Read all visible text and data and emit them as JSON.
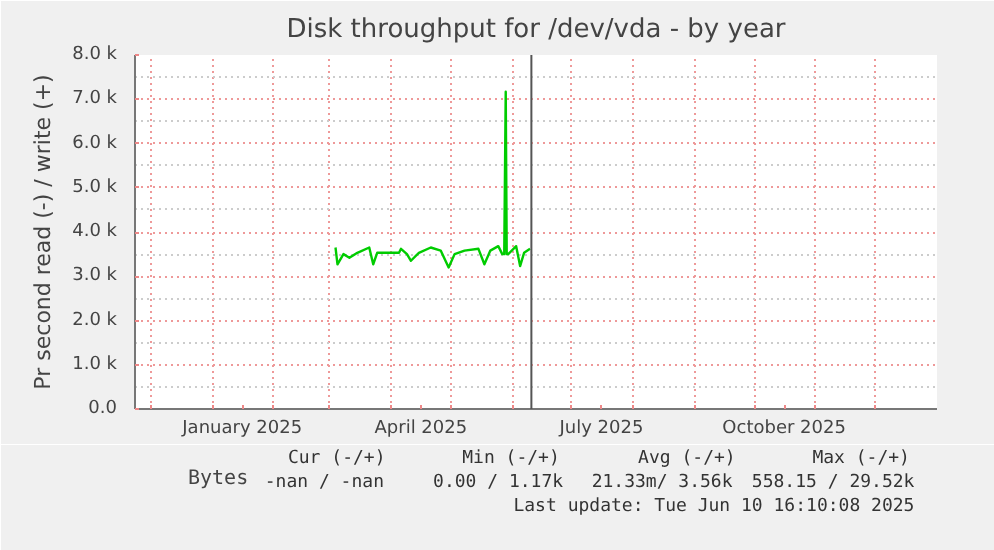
{
  "chart_data": {
    "type": "line",
    "title": "Disk throughput for /dev/vda - by year",
    "ylabel": "Pr second read (-) / write (+)",
    "x": [
      "2025-03-04",
      "2025-03-05",
      "2025-03-08",
      "2025-03-11",
      "2025-03-15",
      "2025-03-21",
      "2025-03-23",
      "2025-03-25",
      "2025-04-05",
      "2025-04-06",
      "2025-04-09",
      "2025-04-11",
      "2025-04-15",
      "2025-04-21",
      "2025-04-26",
      "2025-04-30",
      "2025-05-03",
      "2025-05-08",
      "2025-05-15",
      "2025-05-18",
      "2025-05-21",
      "2025-05-25",
      "2025-05-27",
      "2025-05-28",
      "2025-05-28T18:00",
      "2025-05-29T06:00",
      "2025-05-30",
      "2025-06-03",
      "2025-06-05",
      "2025-06-07",
      "2025-06-10"
    ],
    "series": [
      {
        "name": "Bytes",
        "color": "#00cc00",
        "values": [
          3650,
          3270,
          3500,
          3420,
          3530,
          3650,
          3270,
          3530,
          3530,
          3620,
          3500,
          3350,
          3530,
          3650,
          3580,
          3200,
          3500,
          3580,
          3620,
          3270,
          3580,
          3680,
          3500,
          3500,
          7170,
          3500,
          3500,
          3680,
          3230,
          3530,
          3620
        ]
      }
    ],
    "xlim": [
      "2024-11-23",
      "2026-01-01"
    ],
    "xticks": [
      {
        "value": "2024-12-01",
        "label": null
      },
      {
        "value": "2025-01-01",
        "label": null
      },
      {
        "value": "2025-01-16",
        "label": "January 2025"
      },
      {
        "value": "2025-02-01",
        "label": null
      },
      {
        "value": "2025-03-01",
        "label": null
      },
      {
        "value": "2025-04-01",
        "label": null
      },
      {
        "value": "2025-04-16",
        "label": "April 2025"
      },
      {
        "value": "2025-05-01",
        "label": null
      },
      {
        "value": "2025-06-01",
        "label": null
      },
      {
        "value": "2025-07-01",
        "label": null
      },
      {
        "value": "2025-07-16",
        "label": "July 2025"
      },
      {
        "value": "2025-08-01",
        "label": null
      },
      {
        "value": "2025-09-01",
        "label": null
      },
      {
        "value": "2025-10-01",
        "label": null
      },
      {
        "value": "2025-10-16",
        "label": "October 2025"
      },
      {
        "value": "2025-11-01",
        "label": null
      },
      {
        "value": "2025-12-01",
        "label": null
      }
    ],
    "ylim": [
      0,
      8000
    ],
    "yticks": [
      {
        "value": 0,
        "label": "0.0"
      },
      {
        "value": 1000,
        "label": "1.0 k"
      },
      {
        "value": 2000,
        "label": "2.0 k"
      },
      {
        "value": 3000,
        "label": "3.0 k"
      },
      {
        "value": 4000,
        "label": "4.0 k"
      },
      {
        "value": 5000,
        "label": "5.0 k"
      },
      {
        "value": 6000,
        "label": "6.0 k"
      },
      {
        "value": 7000,
        "label": "7.0 k"
      },
      {
        "value": 8000,
        "label": "8.0 k"
      }
    ],
    "ref_lines": [
      {
        "axis": "x",
        "value": "2025-06-10T16:10",
        "color": "#555555"
      }
    ],
    "grid": true,
    "legend": "bottom left",
    "annotations": [
      "Cur (-/+)",
      "Min (-/+)",
      "Avg (-/+)",
      "Max (-/+)",
      "-nan /  -nan",
      "0.00 /  1.17k",
      "21.33m/  3.56k",
      "558.15 / 29.52k",
      "Last update: Tue Jun 10 16:10:08 2025"
    ]
  }
}
